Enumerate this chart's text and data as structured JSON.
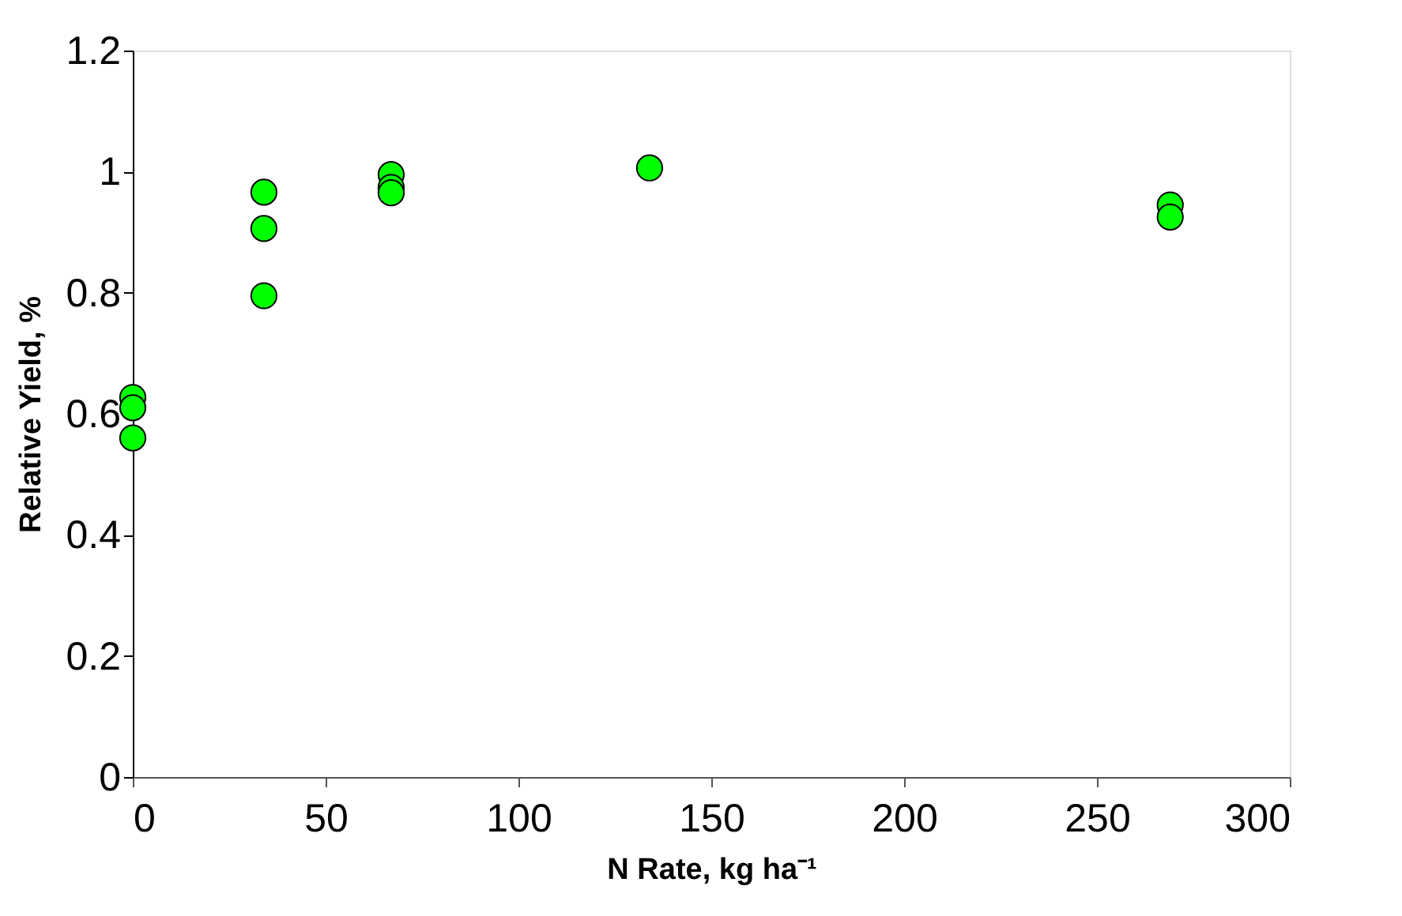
{
  "chart_data": {
    "type": "scatter",
    "xlabel": "N Rate, kg ha⁻¹",
    "ylabel": "Relative Yield, %",
    "series": [
      {
        "color": "#00ff00",
        "x": [
          0,
          0,
          0,
          34,
          34,
          34,
          67,
          67,
          67,
          134,
          269,
          269
        ],
        "values": [
          0.627,
          0.61,
          0.56,
          0.966,
          0.906,
          0.795,
          0.995,
          0.974,
          0.965,
          1.006,
          0.945,
          0.925
        ]
      }
    ],
    "xlim": [
      0,
      300
    ],
    "xticks": [
      0,
      50,
      100,
      150,
      200,
      250,
      300
    ],
    "ylim": [
      0,
      1.2
    ],
    "yticks": [
      0,
      0.2,
      0.4,
      0.6,
      0.8,
      1,
      1.2
    ],
    "marker": "circle",
    "grid": false
  }
}
